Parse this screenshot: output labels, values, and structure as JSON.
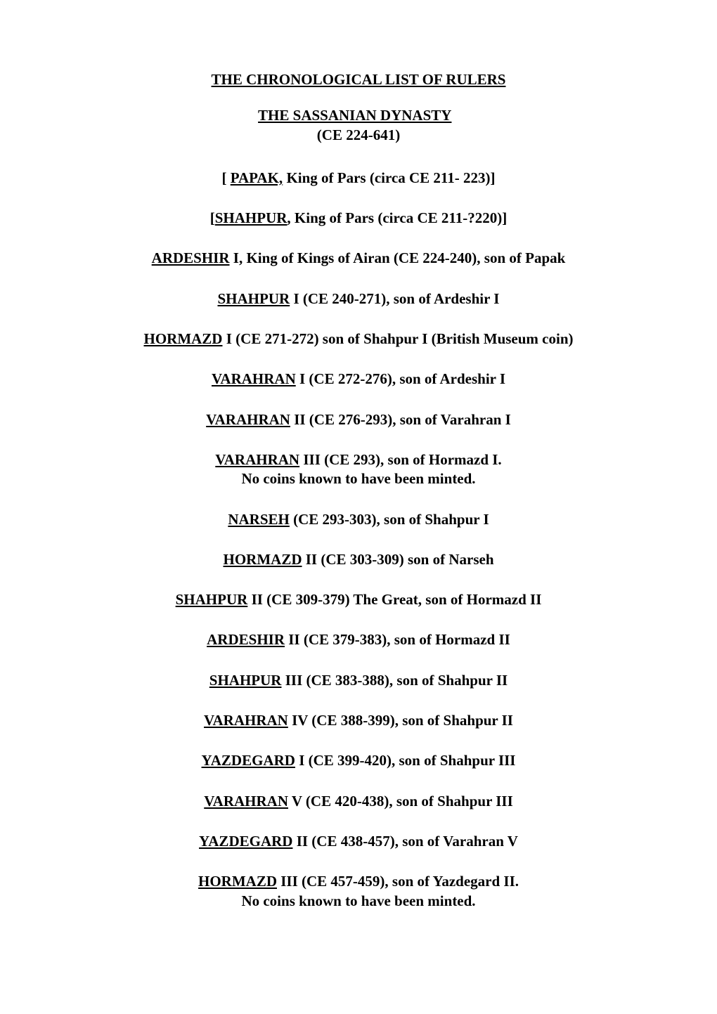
{
  "title": "THE CHRONOLOGICAL LIST OF RULERS",
  "dynasty": {
    "name": "THE SASSANIAN DYNASTY",
    "range": "(CE 224-641)"
  },
  "entries": [
    {
      "prefix": "[ ",
      "link": "PAPAK,",
      "rest": " King of Pars (circa CE 211- 223)]",
      "note": ""
    },
    {
      "prefix": "[",
      "link": "SHAHPUR",
      "rest": ", King of Pars (circa CE 211-?220)]",
      "note": ""
    },
    {
      "prefix": "",
      "link": "ARDESHIR",
      "rest": " I, King of Kings of Airan  (CE 224-240), son of Papak",
      "note": ""
    },
    {
      "prefix": "",
      "link": "SHAHPUR",
      "rest": " I  (CE 240-271), son of Ardeshir I",
      "note": ""
    },
    {
      "prefix": "",
      "link": "HORMAZD",
      "rest": " I  (CE 271-272) son of Shahpur I (British Museum coin)",
      "note": ""
    },
    {
      "prefix": "",
      "link": "VARAHRAN",
      "rest": " I  (CE 272-276), son of Ardeshir I",
      "note": ""
    },
    {
      "prefix": "",
      "link": "VARAHRAN",
      "rest": " II  (CE 276-293), son of Varahran I",
      "note": ""
    },
    {
      "prefix": "",
      "link": "VARAHRAN",
      "rest": " III (CE 293), son of Hormazd  I.",
      "note": "No coins known to have been minted."
    },
    {
      "prefix": "",
      "link": "NARSEH",
      "rest": "  (CE 293-303), son of Shahpur I",
      "note": ""
    },
    {
      "prefix": "",
      "link": "HORMAZD",
      "rest": " II  (CE 303-309) son of Narseh",
      "note": ""
    },
    {
      "prefix": "",
      "link": "SHAHPUR",
      "rest": " II  (CE 309-379) The Great, son of Hormazd II",
      "note": ""
    },
    {
      "prefix": "",
      "link": "ARDESHIR",
      "rest": " II (CE 379-383), son of Hormazd II",
      "note": ""
    },
    {
      "prefix": "",
      "link": "SHAHPUR",
      "rest": " III  (CE 383-388), son of Shahpur II",
      "note": ""
    },
    {
      "prefix": "",
      "link": "VARAHRAN",
      "rest": " IV  (CE 388-399), son of Shahpur II",
      "note": ""
    },
    {
      "prefix": "",
      "link": "YAZDEGARD",
      "rest": " I  (CE 399-420), son of Shahpur III",
      "note": ""
    },
    {
      "prefix": "",
      "link": "VARAHRAN",
      "rest": " V  (CE 420-438), son of Shahpur III",
      "note": ""
    },
    {
      "prefix": "",
      "link": "YAZDEGARD",
      "rest": " II (CE 438-457), son of Varahran V",
      "note": ""
    },
    {
      "prefix": "",
      "link": "HORMAZD",
      "rest": " III  (CE 457-459), son of Yazdegard II.",
      "note": "No coins known to have been minted."
    }
  ]
}
